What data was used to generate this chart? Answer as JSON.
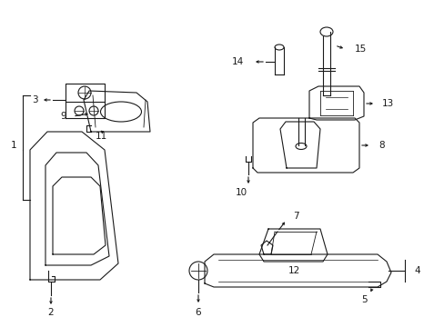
{
  "background_color": "#ffffff",
  "line_color": "#1a1a1a",
  "lw": 0.8,
  "fig_w": 4.89,
  "fig_h": 3.6,
  "dpi": 100
}
